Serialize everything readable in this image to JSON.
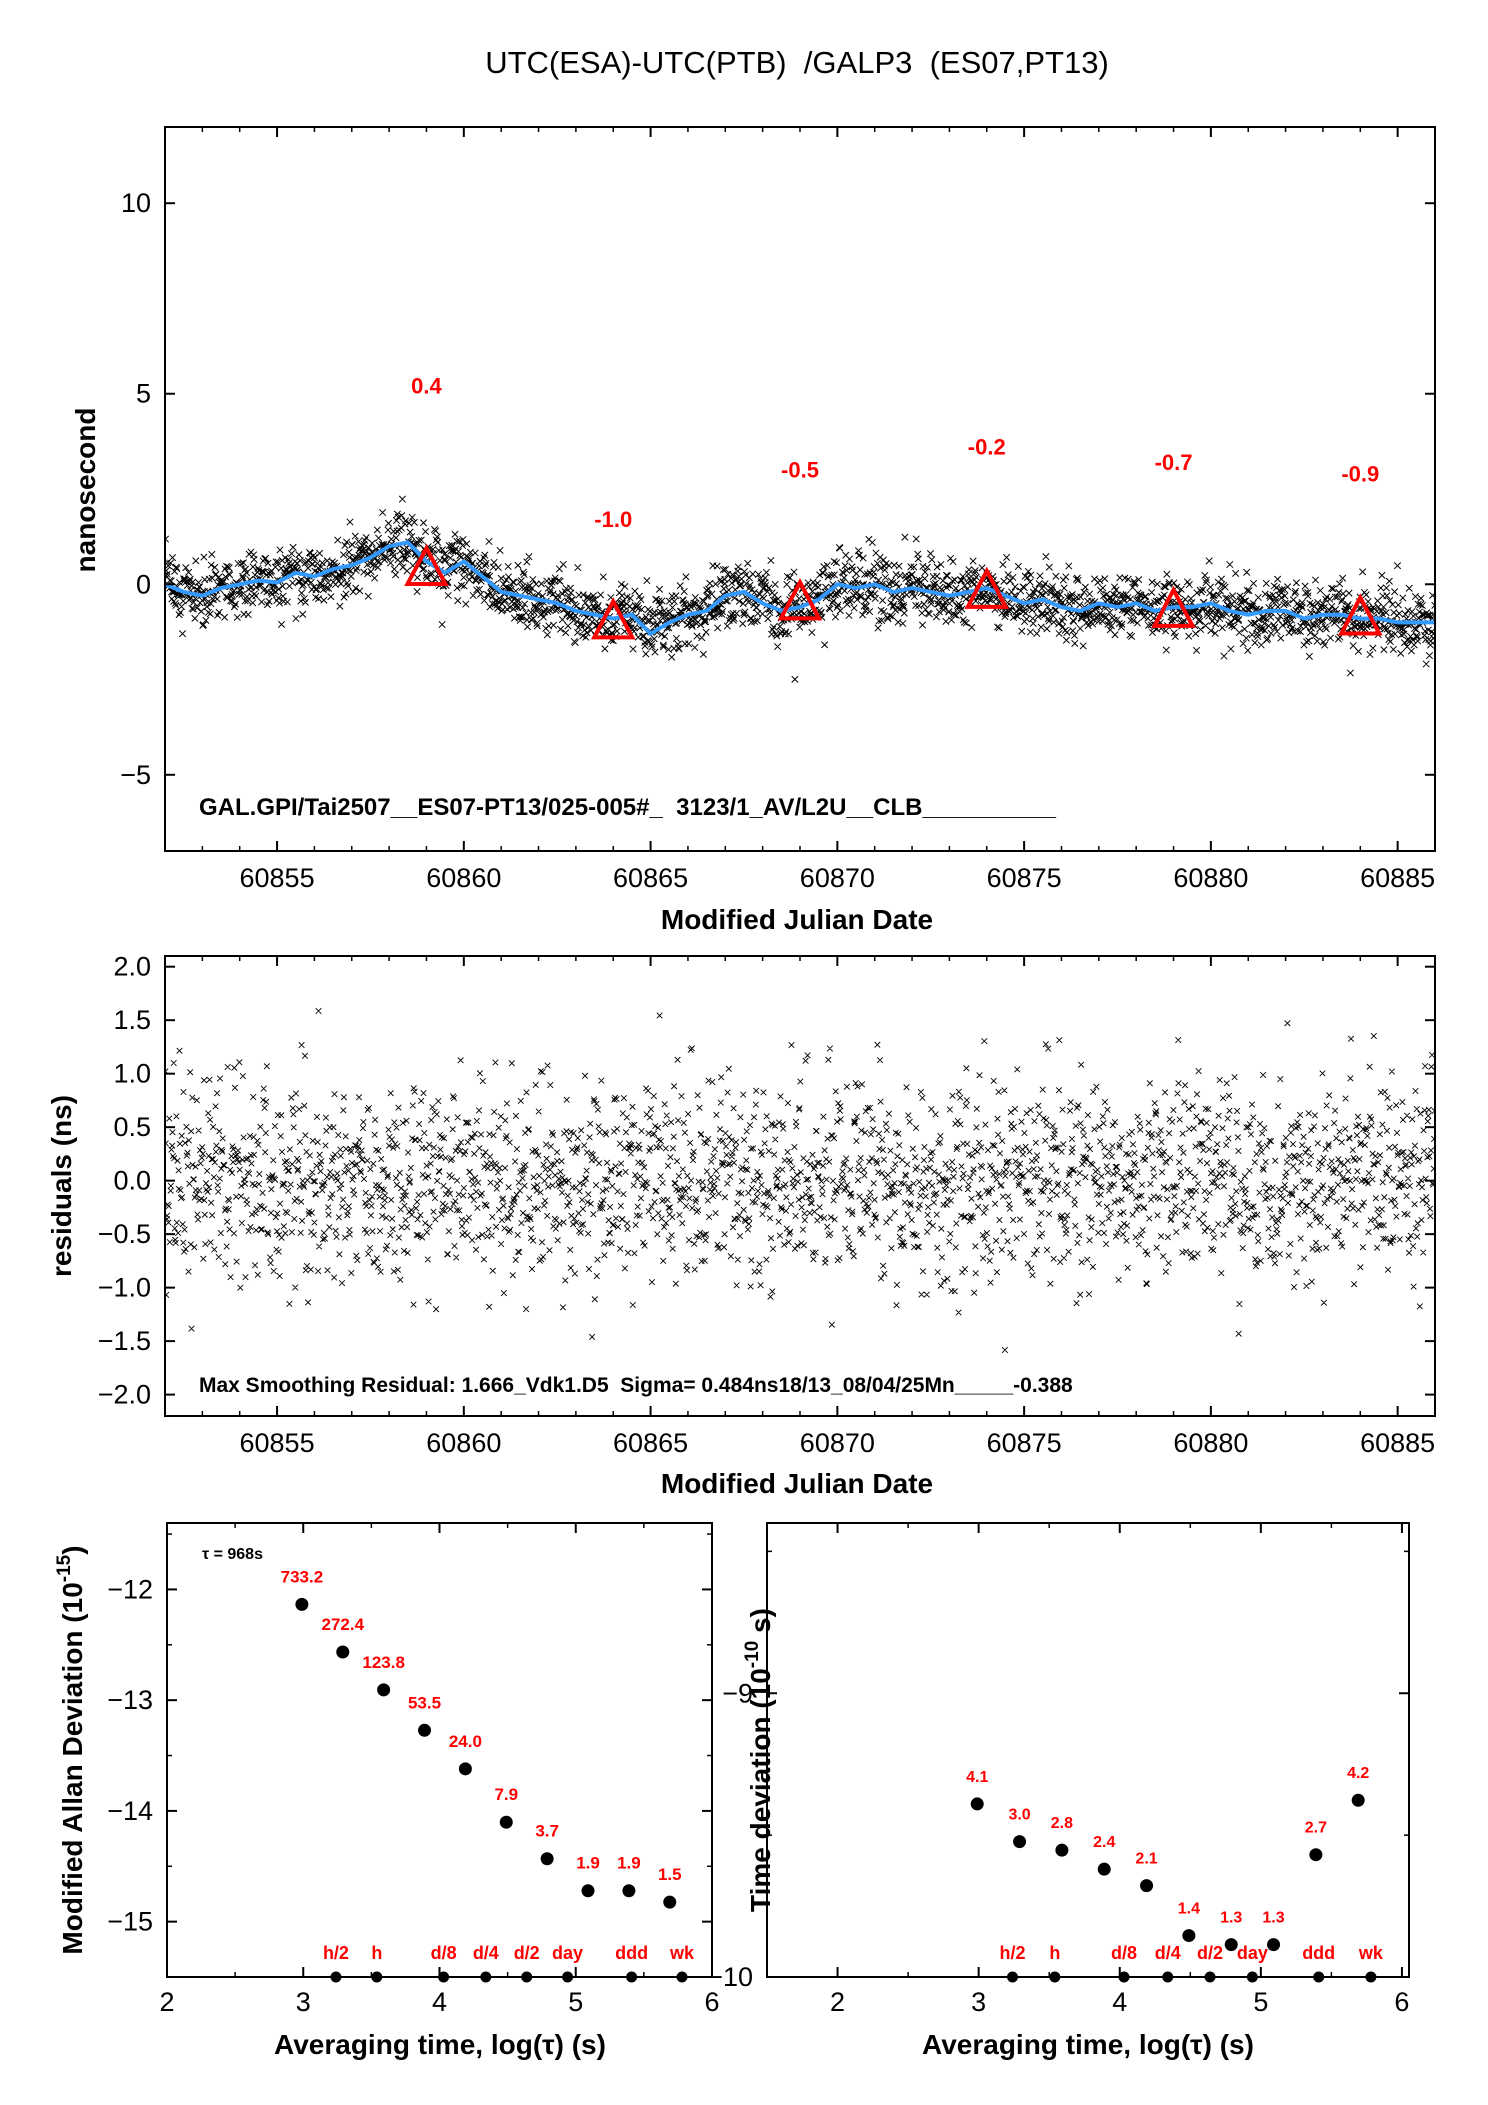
{
  "chart_data": [
    {
      "type": "scatter",
      "title": "UTC(ESA)-UTC(PTB)  /GALP3  (ES07,PT13)",
      "xlabel": "Modified Julian Date",
      "ylabel": "nanosecond",
      "xlim": [
        60852,
        60886
      ],
      "ylim": [
        -7,
        12
      ],
      "x_ticks": [
        60855,
        60860,
        60865,
        60870,
        60875,
        60880,
        60885
      ],
      "y_ticks": [
        -5,
        0,
        5,
        10
      ],
      "annotation": "GAL.GPI/Tai2507__ES07-PT13/025-005#_  3123/1_AV/L2U__CLB__________",
      "smooth_curve": {
        "color": "#3399ff",
        "x": [
          60852,
          60852.5,
          60853,
          60853.5,
          60854,
          60854.5,
          60855,
          60855.5,
          60856,
          60856.5,
          60857,
          60857.5,
          60858,
          60858.5,
          60859,
          60859.5,
          60860,
          60860.5,
          60861,
          60861.5,
          60862,
          60862.5,
          60863,
          60863.5,
          60864,
          60864.5,
          60865,
          60865.5,
          60866,
          60866.5,
          60867,
          60867.5,
          60868,
          60868.5,
          60869,
          60869.5,
          60870,
          60870.5,
          60871,
          60871.5,
          60872,
          60872.5,
          60873,
          60873.5,
          60874,
          60874.5,
          60875,
          60875.5,
          60876,
          60876.5,
          60877,
          60877.5,
          60878,
          60878.5,
          60879,
          60879.5,
          60880,
          60880.5,
          60881,
          60881.5,
          60882,
          60882.5,
          60883,
          60883.5,
          60884,
          60884.5,
          60885,
          60885.5,
          60886
        ],
        "y": [
          0.0,
          -0.2,
          -0.3,
          -0.1,
          0.0,
          0.1,
          0.05,
          0.3,
          0.2,
          0.4,
          0.5,
          0.7,
          1.0,
          1.1,
          0.6,
          0.3,
          0.6,
          0.2,
          -0.2,
          -0.3,
          -0.4,
          -0.5,
          -0.7,
          -0.8,
          -0.9,
          -0.8,
          -1.3,
          -1.0,
          -0.8,
          -0.7,
          -0.3,
          -0.2,
          -0.5,
          -0.7,
          -0.6,
          -0.4,
          0.0,
          -0.1,
          0.0,
          -0.2,
          -0.1,
          -0.2,
          -0.3,
          -0.2,
          -0.1,
          -0.3,
          -0.5,
          -0.4,
          -0.6,
          -0.7,
          -0.5,
          -0.6,
          -0.5,
          -0.7,
          -0.6,
          -0.6,
          -0.5,
          -0.7,
          -0.8,
          -0.7,
          -0.7,
          -0.9,
          -0.8,
          -0.8,
          -0.9,
          -0.9,
          -1.0,
          -1.0,
          -1.0
        ]
      },
      "monthly_markers": {
        "color": "#ff0000",
        "x": [
          60859,
          60864,
          60869,
          60874,
          60879,
          60884
        ],
        "y": [
          0.4,
          -1.0,
          -0.5,
          -0.2,
          -0.7,
          -0.9
        ],
        "labels": [
          "0.4",
          "-1.0",
          "-0.5",
          "-0.2",
          "-0.7",
          "-0.9"
        ]
      },
      "scatter_points": "dense black 'x' markers, approx. 2500 points scattered around the smooth curve with spread ≈ ±0.5 ns (max ≈ ±1.6 ns)"
    },
    {
      "type": "scatter",
      "xlabel": "Modified Julian Date",
      "ylabel": "residuals (ns)",
      "xlim": [
        60852,
        60886
      ],
      "ylim": [
        -2.2,
        2.1
      ],
      "x_ticks": [
        60855,
        60860,
        60865,
        60870,
        60875,
        60880,
        60885
      ],
      "y_ticks": [
        -2.0,
        -1.5,
        -1.0,
        -0.5,
        0.0,
        0.5,
        1.0,
        1.5,
        2.0
      ],
      "y_tick_labels": [
        "−2.0",
        "−1.5",
        "−1.0",
        "−0.5",
        "0.0",
        "0.5",
        "1.0",
        "1.5",
        "2.0"
      ],
      "annotation": "Max Smoothing Residual: 1.666_Vdk1.D5  Sigma= 0.484ns18/13_08/04/25Mn_____-0.388",
      "scatter_points": "dense black 'x' markers, approx. 2500 residuals with sigma 0.484 ns, max 1.666 ns"
    },
    {
      "type": "scatter",
      "xlabel": "Averaging time, log(τ) (s)",
      "ylabel": "Modified Allan Deviation (10",
      "ylabel_exp": "-15",
      "ylabel_tail": ")",
      "xlim": [
        2,
        6
      ],
      "ylim": [
        -15.5,
        -11.4
      ],
      "x_ticks": [
        2,
        3,
        4,
        5,
        6
      ],
      "y_ticks": [
        -15,
        -14,
        -13,
        -12
      ],
      "y_tick_labels": [
        "−15",
        "−14",
        "−13",
        "−12"
      ],
      "tau_note": "τ = 968s",
      "x": [
        2.99,
        3.29,
        3.59,
        3.89,
        4.19,
        4.49,
        4.79,
        5.09,
        5.39,
        5.69
      ],
      "y": [
        -12.135,
        -12.565,
        -12.907,
        -13.272,
        -13.62,
        -14.102,
        -14.432,
        -14.721,
        -14.721,
        -14.824
      ],
      "labels": [
        "733.2",
        "272.4",
        "123.8",
        "53.5",
        "24.0",
        "7.9",
        "3.7",
        "1.9",
        "1.9",
        "1.5"
      ],
      "time_markers": {
        "x": [
          3.24,
          3.54,
          4.03,
          4.34,
          4.64,
          4.94,
          5.41,
          5.78
        ],
        "labels": [
          "h/2",
          "h",
          "d/8",
          "d/4",
          "d/2",
          "day",
          "ddd",
          "wk"
        ]
      }
    },
    {
      "type": "scatter",
      "xlabel": "Averaging time, log(τ) (s)",
      "ylabel": "Time deviation (10",
      "ylabel_exp": "-10",
      "ylabel_tail": " s)",
      "xlim": [
        1.5,
        6.05
      ],
      "ylim": [
        -10.0,
        -8.4
      ],
      "x_ticks": [
        2,
        3,
        4,
        5,
        6
      ],
      "y_ticks": [
        -10,
        -9
      ],
      "y_tick_labels": [
        "−10",
        "−9"
      ],
      "x": [
        2.99,
        3.29,
        3.59,
        3.89,
        4.19,
        4.49,
        4.79,
        5.09,
        5.39,
        5.69
      ],
      "y": [
        -9.39,
        -9.523,
        -9.553,
        -9.62,
        -9.678,
        -9.854,
        -9.886,
        -9.886,
        -9.569,
        -9.377
      ],
      "labels": [
        "4.1",
        "3.0",
        "2.8",
        "2.4",
        "2.1",
        "1.4",
        "1.3",
        "1.3",
        "2.7",
        "4.2"
      ],
      "time_markers": {
        "x": [
          3.24,
          3.54,
          4.03,
          4.34,
          4.64,
          4.94,
          5.41,
          5.78
        ],
        "labels": [
          "h/2",
          "h",
          "d/8",
          "d/4",
          "d/2",
          "day",
          "ddd",
          "wk"
        ]
      }
    }
  ]
}
